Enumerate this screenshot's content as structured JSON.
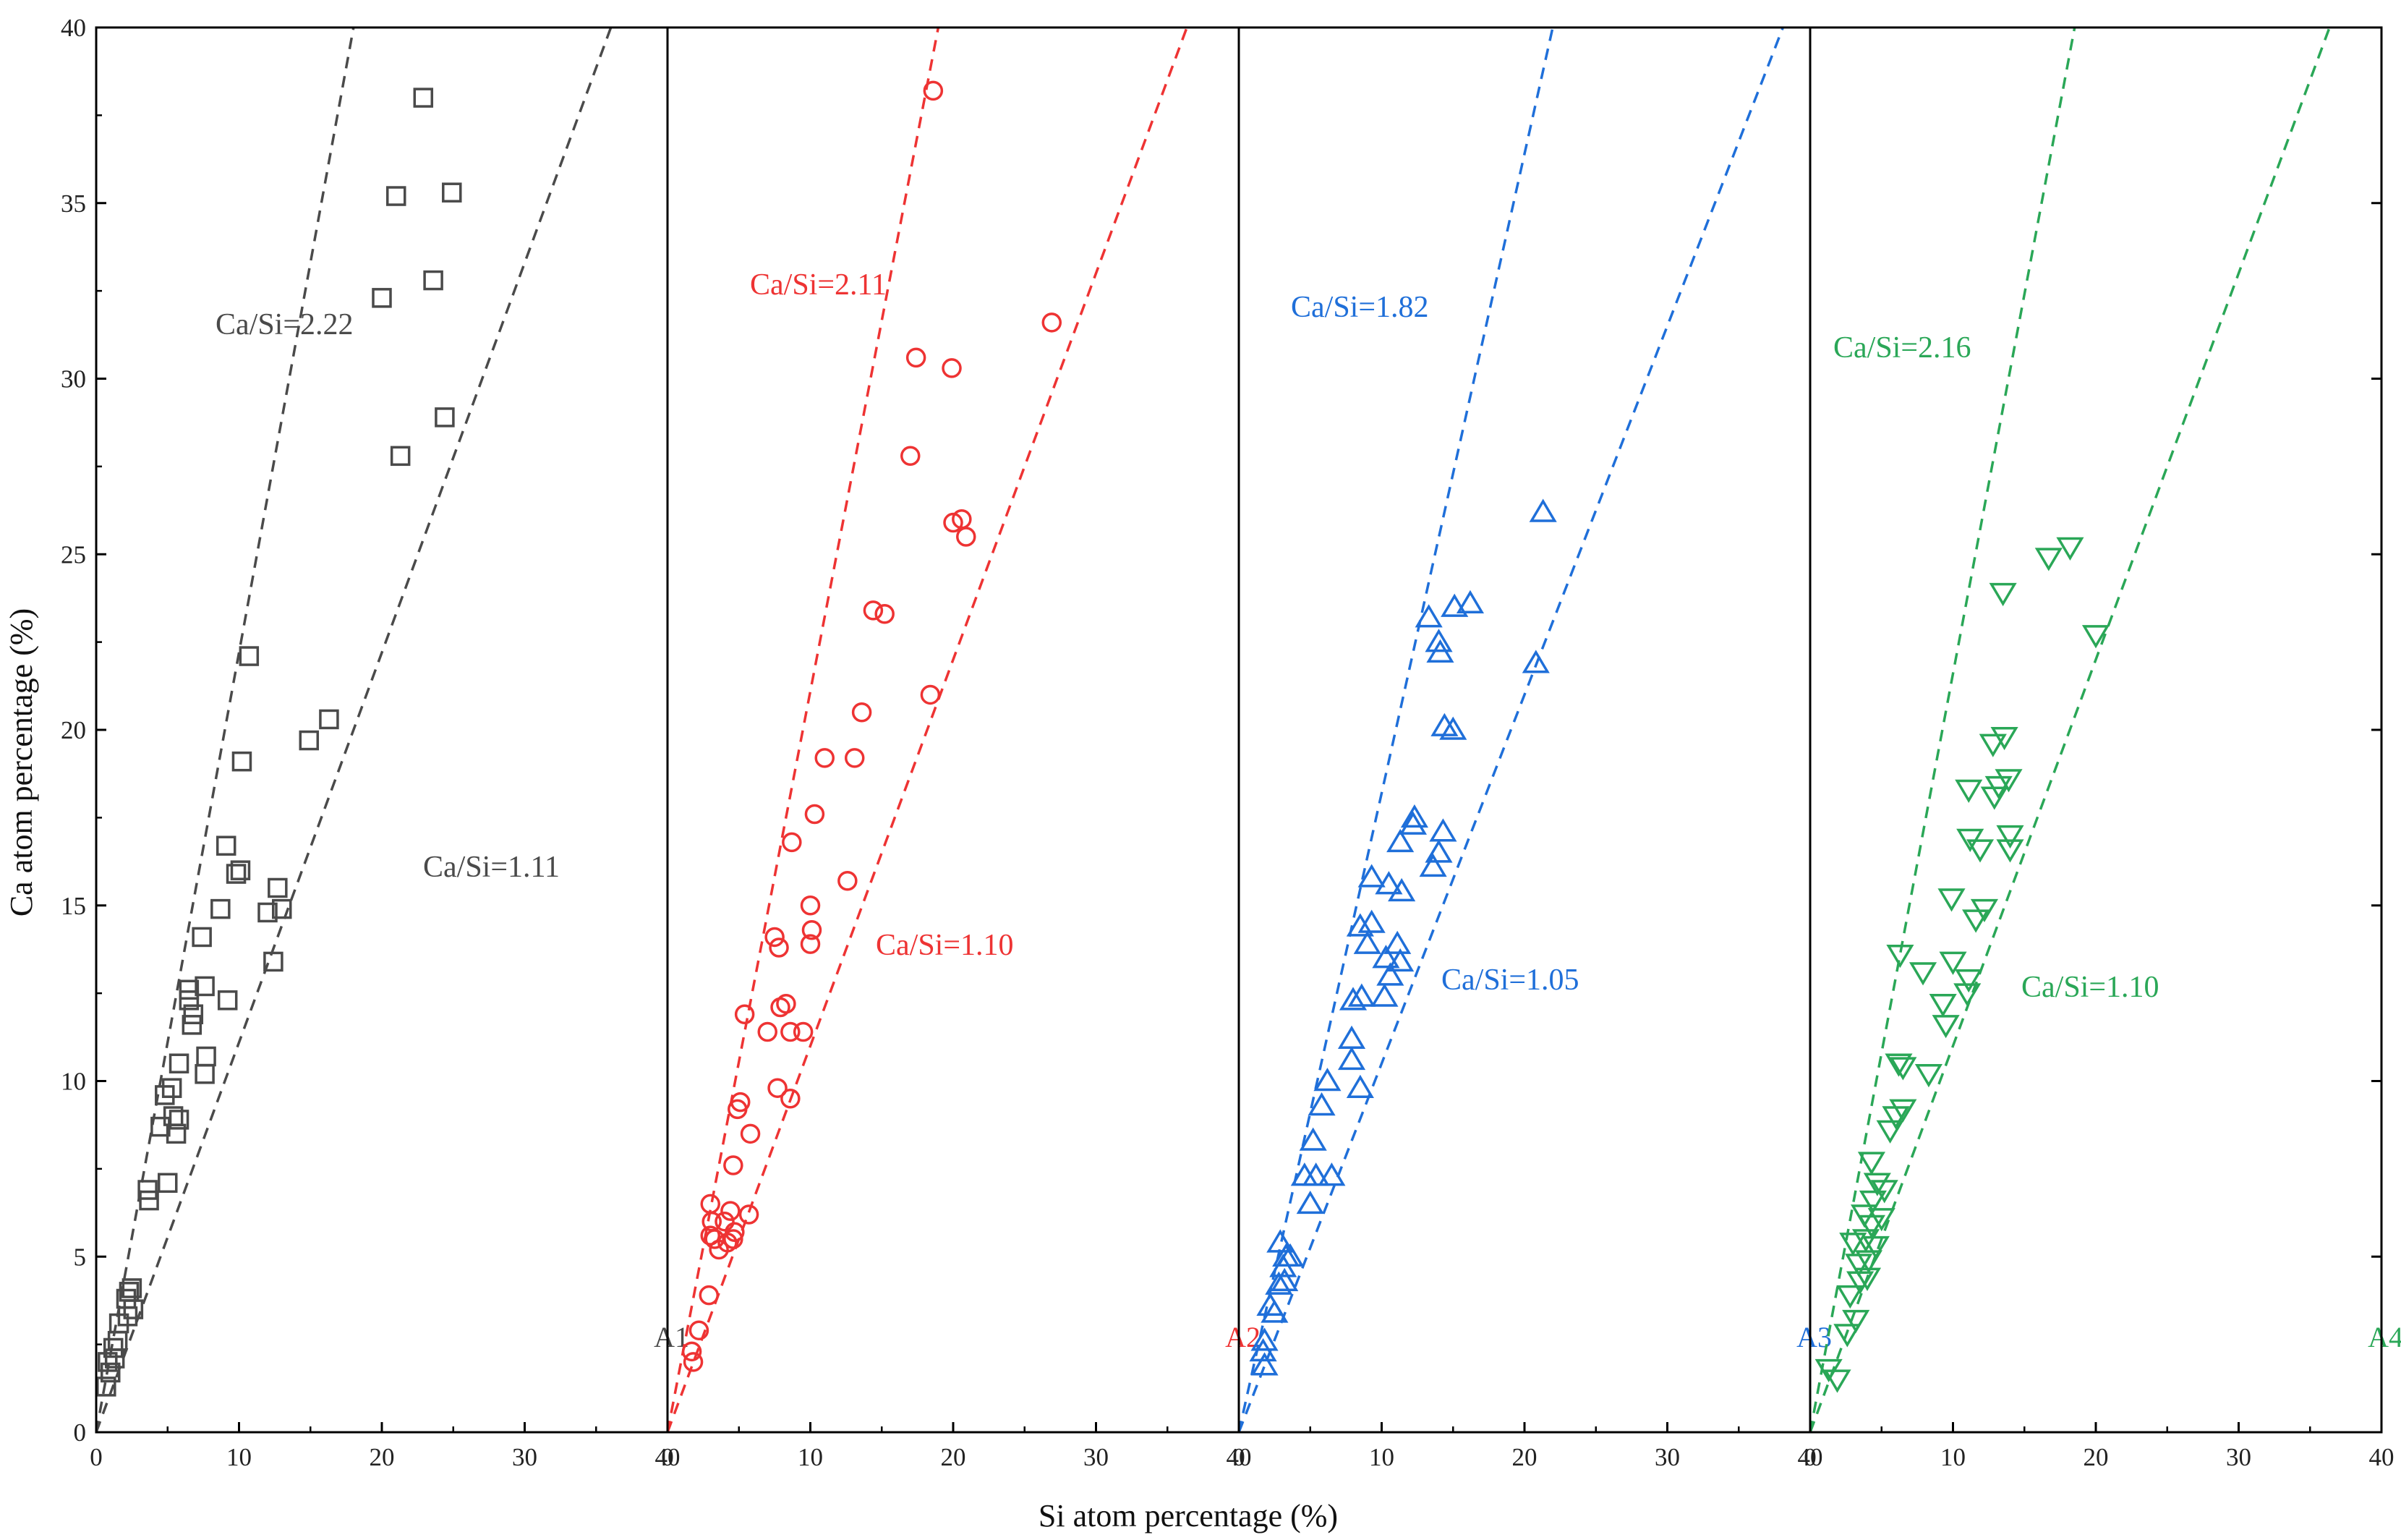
{
  "chart_data": {
    "type": "scatter",
    "xlabel": "Si atom percentage (%)",
    "ylabel": "Ca atom percentage (%)",
    "ylim": [
      0,
      40
    ],
    "yticks": [
      "0",
      "5",
      "10",
      "15",
      "20",
      "25",
      "30",
      "35",
      "40"
    ],
    "panels": [
      {
        "label": "A1",
        "color": "#4a4a4a",
        "marker": "square",
        "xlim": [
          0,
          40
        ],
        "xticks": [
          "0",
          "10",
          "20",
          "30",
          "40"
        ],
        "fit_lines": [
          {
            "label": "Ca/Si=2.22",
            "slope": 2.22
          },
          {
            "label": "Ca/Si=1.11",
            "slope": 1.11
          }
        ],
        "points": [
          [
            0.7,
            1.3
          ],
          [
            1.0,
            1.7
          ],
          [
            0.8,
            2.0
          ],
          [
            1.3,
            2.1
          ],
          [
            1.2,
            2.4
          ],
          [
            1.5,
            2.6
          ],
          [
            1.6,
            3.1
          ],
          [
            2.2,
            3.3
          ],
          [
            2.6,
            3.5
          ],
          [
            2.1,
            3.8
          ],
          [
            2.3,
            4.0
          ],
          [
            2.5,
            4.1
          ],
          [
            3.7,
            6.6
          ],
          [
            3.6,
            6.9
          ],
          [
            5.0,
            7.1
          ],
          [
            5.6,
            8.5
          ],
          [
            4.5,
            8.7
          ],
          [
            5.8,
            8.9
          ],
          [
            5.4,
            9.0
          ],
          [
            4.8,
            9.6
          ],
          [
            5.3,
            9.8
          ],
          [
            5.8,
            10.5
          ],
          [
            7.6,
            10.2
          ],
          [
            7.7,
            10.7
          ],
          [
            6.7,
            11.6
          ],
          [
            6.8,
            11.9
          ],
          [
            6.5,
            12.3
          ],
          [
            7.6,
            12.7
          ],
          [
            9.2,
            12.3
          ],
          [
            6.5,
            12.6
          ],
          [
            7.4,
            14.1
          ],
          [
            8.7,
            14.9
          ],
          [
            12.4,
            13.4
          ],
          [
            12.0,
            14.8
          ],
          [
            13.0,
            14.9
          ],
          [
            12.7,
            15.5
          ],
          [
            9.8,
            15.9
          ],
          [
            10.1,
            16.0
          ],
          [
            9.1,
            16.7
          ],
          [
            14.9,
            19.7
          ],
          [
            16.3,
            20.3
          ],
          [
            10.2,
            19.1
          ],
          [
            10.7,
            22.1
          ],
          [
            21.3,
            27.8
          ],
          [
            20.0,
            32.3
          ],
          [
            23.6,
            32.8
          ],
          [
            24.4,
            28.9
          ],
          [
            21.0,
            35.2
          ],
          [
            24.9,
            35.3
          ],
          [
            22.9,
            38.0
          ]
        ],
        "annotations": [
          "Ca/Si=2.22",
          "Ca/Si=1.11",
          "A1"
        ]
      },
      {
        "label": "A2",
        "color": "#ee3333",
        "marker": "circle",
        "xlim": [
          0,
          40
        ],
        "xticks": [
          "0",
          "10",
          "20",
          "30",
          "40"
        ],
        "fit_lines": [
          {
            "label": "Ca/Si=2.11",
            "slope": 2.11
          },
          {
            "label": "Ca/Si=1.10",
            "slope": 1.1
          }
        ],
        "points": [
          [
            1.8,
            2.0
          ],
          [
            1.7,
            2.3
          ],
          [
            2.2,
            2.9
          ],
          [
            2.9,
            3.9
          ],
          [
            3.0,
            5.6
          ],
          [
            3.3,
            5.5
          ],
          [
            3.6,
            5.2
          ],
          [
            4.2,
            5.4
          ],
          [
            4.0,
            6.0
          ],
          [
            3.1,
            6.0
          ],
          [
            3.0,
            6.5
          ],
          [
            4.6,
            5.5
          ],
          [
            4.7,
            5.7
          ],
          [
            4.4,
            6.3
          ],
          [
            5.7,
            6.2
          ],
          [
            4.6,
            7.6
          ],
          [
            5.8,
            8.5
          ],
          [
            4.9,
            9.2
          ],
          [
            5.1,
            9.4
          ],
          [
            7.7,
            9.8
          ],
          [
            8.6,
            9.5
          ],
          [
            7.0,
            11.4
          ],
          [
            8.6,
            11.4
          ],
          [
            9.5,
            11.4
          ],
          [
            7.9,
            12.1
          ],
          [
            8.3,
            12.2
          ],
          [
            5.4,
            11.9
          ],
          [
            10.0,
            13.9
          ],
          [
            10.1,
            14.3
          ],
          [
            7.8,
            13.8
          ],
          [
            7.5,
            14.1
          ],
          [
            10.0,
            15.0
          ],
          [
            12.6,
            15.7
          ],
          [
            8.7,
            16.8
          ],
          [
            10.3,
            17.6
          ],
          [
            11.0,
            19.2
          ],
          [
            13.1,
            19.2
          ],
          [
            13.6,
            20.5
          ],
          [
            18.4,
            21.0
          ],
          [
            14.4,
            23.4
          ],
          [
            15.2,
            23.3
          ],
          [
            20.0,
            25.9
          ],
          [
            20.6,
            26.0
          ],
          [
            20.9,
            25.5
          ],
          [
            17.0,
            27.8
          ],
          [
            19.9,
            30.3
          ],
          [
            17.4,
            30.6
          ],
          [
            26.9,
            31.6
          ],
          [
            18.6,
            38.2
          ]
        ],
        "annotations": [
          "Ca/Si=2.11",
          "Ca/Si=1.10",
          "A2"
        ]
      },
      {
        "label": "A3",
        "color": "#1f6fd9",
        "marker": "triangle-up",
        "xlim": [
          0,
          40
        ],
        "xticks": [
          "0",
          "10",
          "20",
          "30",
          "40"
        ],
        "fit_lines": [
          {
            "label": "Ca/Si=1.82",
            "slope": 1.82
          },
          {
            "label": "Ca/Si=1.05",
            "slope": 1.05
          }
        ],
        "points": [
          [
            1.8,
            1.9
          ],
          [
            1.7,
            2.3
          ],
          [
            1.8,
            2.6
          ],
          [
            2.2,
            3.6
          ],
          [
            2.5,
            3.4
          ],
          [
            2.8,
            4.2
          ],
          [
            3.2,
            4.3
          ],
          [
            3.1,
            4.7
          ],
          [
            3.3,
            5.0
          ],
          [
            3.6,
            5.0
          ],
          [
            2.9,
            5.4
          ],
          [
            5.0,
            6.5
          ],
          [
            4.6,
            7.3
          ],
          [
            6.5,
            7.3
          ],
          [
            5.4,
            7.3
          ],
          [
            5.2,
            8.3
          ],
          [
            5.8,
            9.3
          ],
          [
            8.5,
            9.8
          ],
          [
            6.2,
            10.0
          ],
          [
            7.9,
            10.6
          ],
          [
            7.9,
            11.2
          ],
          [
            8.0,
            12.3
          ],
          [
            8.6,
            12.4
          ],
          [
            10.2,
            12.4
          ],
          [
            10.6,
            13.0
          ],
          [
            11.3,
            13.4
          ],
          [
            10.3,
            13.5
          ],
          [
            9.0,
            13.9
          ],
          [
            11.1,
            13.9
          ],
          [
            8.5,
            14.4
          ],
          [
            9.3,
            14.5
          ],
          [
            13.6,
            16.1
          ],
          [
            14.0,
            16.5
          ],
          [
            11.4,
            15.4
          ],
          [
            11.3,
            16.8
          ],
          [
            14.3,
            17.1
          ],
          [
            9.3,
            15.8
          ],
          [
            10.5,
            15.6
          ],
          [
            12.2,
            17.3
          ],
          [
            12.3,
            17.5
          ],
          [
            15.0,
            20.0
          ],
          [
            14.4,
            20.1
          ],
          [
            14.1,
            22.2
          ],
          [
            14.0,
            22.5
          ],
          [
            20.8,
            21.9
          ],
          [
            13.3,
            23.2
          ],
          [
            15.1,
            23.5
          ],
          [
            16.2,
            23.6
          ],
          [
            21.3,
            26.2
          ]
        ],
        "annotations": [
          "Ca/Si=1.82",
          "Ca/Si=1.05",
          "A3"
        ]
      },
      {
        "label": "A4",
        "color": "#2aa757",
        "marker": "triangle-down",
        "xlim": [
          0,
          40
        ],
        "xticks": [
          "0",
          "10",
          "20",
          "30",
          "40"
        ],
        "fit_lines": [
          {
            "label": "Ca/Si=2.16",
            "slope": 2.16
          },
          {
            "label": "Ca/Si=1.10",
            "slope": 1.1
          }
        ],
        "points": [
          [
            1.3,
            1.8
          ],
          [
            1.9,
            1.5
          ],
          [
            2.6,
            2.8
          ],
          [
            3.2,
            3.2
          ],
          [
            2.8,
            3.9
          ],
          [
            3.5,
            4.3
          ],
          [
            4.0,
            4.4
          ],
          [
            3.4,
            4.8
          ],
          [
            4.1,
            4.9
          ],
          [
            3.0,
            5.4
          ],
          [
            3.9,
            5.5
          ],
          [
            4.6,
            5.3
          ],
          [
            4.3,
            5.9
          ],
          [
            5.0,
            6.1
          ],
          [
            3.8,
            6.2
          ],
          [
            4.4,
            6.6
          ],
          [
            5.2,
            6.9
          ],
          [
            4.7,
            7.1
          ],
          [
            4.3,
            7.7
          ],
          [
            5.6,
            8.6
          ],
          [
            6.0,
            9.0
          ],
          [
            6.5,
            9.2
          ],
          [
            8.3,
            10.2
          ],
          [
            6.5,
            10.4
          ],
          [
            6.2,
            10.5
          ],
          [
            9.5,
            11.6
          ],
          [
            9.3,
            12.2
          ],
          [
            11.0,
            12.5
          ],
          [
            11.1,
            12.9
          ],
          [
            7.9,
            13.1
          ],
          [
            10.0,
            13.4
          ],
          [
            6.3,
            13.6
          ],
          [
            11.6,
            14.6
          ],
          [
            12.2,
            14.9
          ],
          [
            9.9,
            15.2
          ],
          [
            11.9,
            16.6
          ],
          [
            14.0,
            16.6
          ],
          [
            11.2,
            16.9
          ],
          [
            14.0,
            17.0
          ],
          [
            12.9,
            18.1
          ],
          [
            13.2,
            18.4
          ],
          [
            13.9,
            18.6
          ],
          [
            11.1,
            18.3
          ],
          [
            12.8,
            19.6
          ],
          [
            13.6,
            19.8
          ],
          [
            20.0,
            22.7
          ],
          [
            13.5,
            23.9
          ],
          [
            16.7,
            24.9
          ],
          [
            18.2,
            25.2
          ]
        ],
        "annotations": [
          "Ca/Si=2.16",
          "Ca/Si=1.10",
          "A4"
        ]
      }
    ]
  }
}
